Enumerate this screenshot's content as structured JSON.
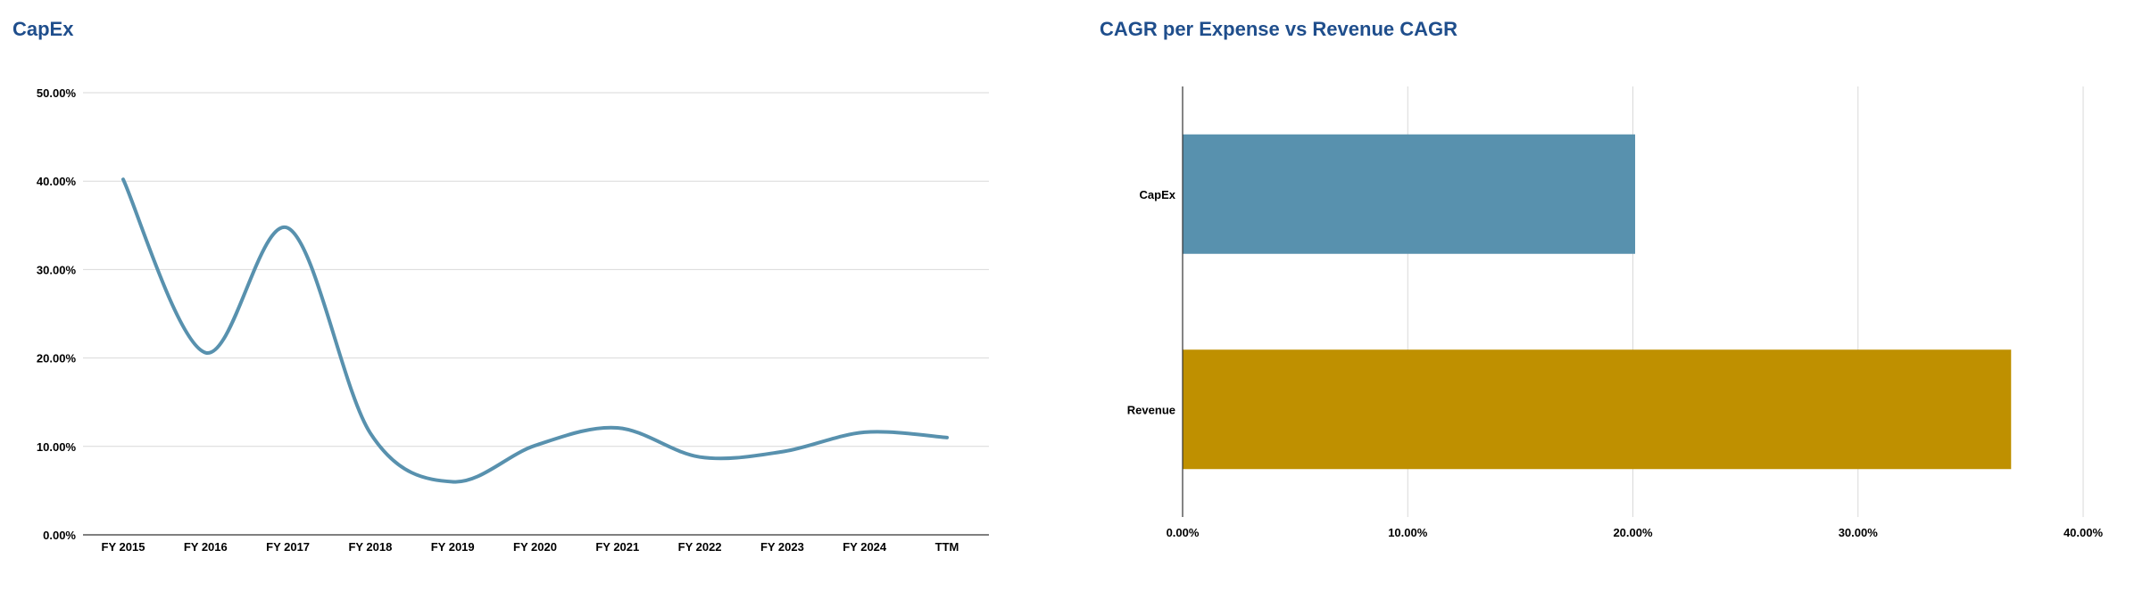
{
  "colors": {
    "title": "#1f4e8c",
    "grid": "#d9d9d9",
    "axis": "#333333",
    "line": "#5891ae",
    "capex_bar": "#5891ae",
    "revenue_bar": "#bf9000"
  },
  "chart_data": [
    {
      "type": "line",
      "title": "CapEx",
      "xlabel": "",
      "ylabel": "",
      "categories": [
        "FY 2015",
        "FY 2016",
        "FY 2017",
        "FY 2018",
        "FY 2019",
        "FY 2020",
        "FY 2021",
        "FY 2022",
        "FY 2023",
        "FY 2024",
        "TTM"
      ],
      "series": [
        {
          "values": [
            40.2,
            20.6,
            34.7,
            11.5,
            6.0,
            10.1,
            12.1,
            8.8,
            9.4,
            11.6,
            11.0
          ]
        }
      ],
      "ylim": [
        0,
        50
      ],
      "yticks": [
        "0.00%",
        "10.00%",
        "20.00%",
        "30.00%",
        "40.00%",
        "50.00%"
      ],
      "smooth": true,
      "grid": true,
      "legend": "none"
    },
    {
      "type": "bar",
      "orientation": "horizontal",
      "title": "CAGR per Expense vs Revenue CAGR",
      "xlabel": "",
      "ylabel": "",
      "categories": [
        "CapEx",
        "Revenue"
      ],
      "values": [
        20.1,
        36.8
      ],
      "xlim": [
        0,
        40
      ],
      "xticks": [
        "0.00%",
        "10.00%",
        "20.00%",
        "30.00%",
        "40.00%"
      ],
      "grid": true,
      "legend": "none"
    }
  ]
}
